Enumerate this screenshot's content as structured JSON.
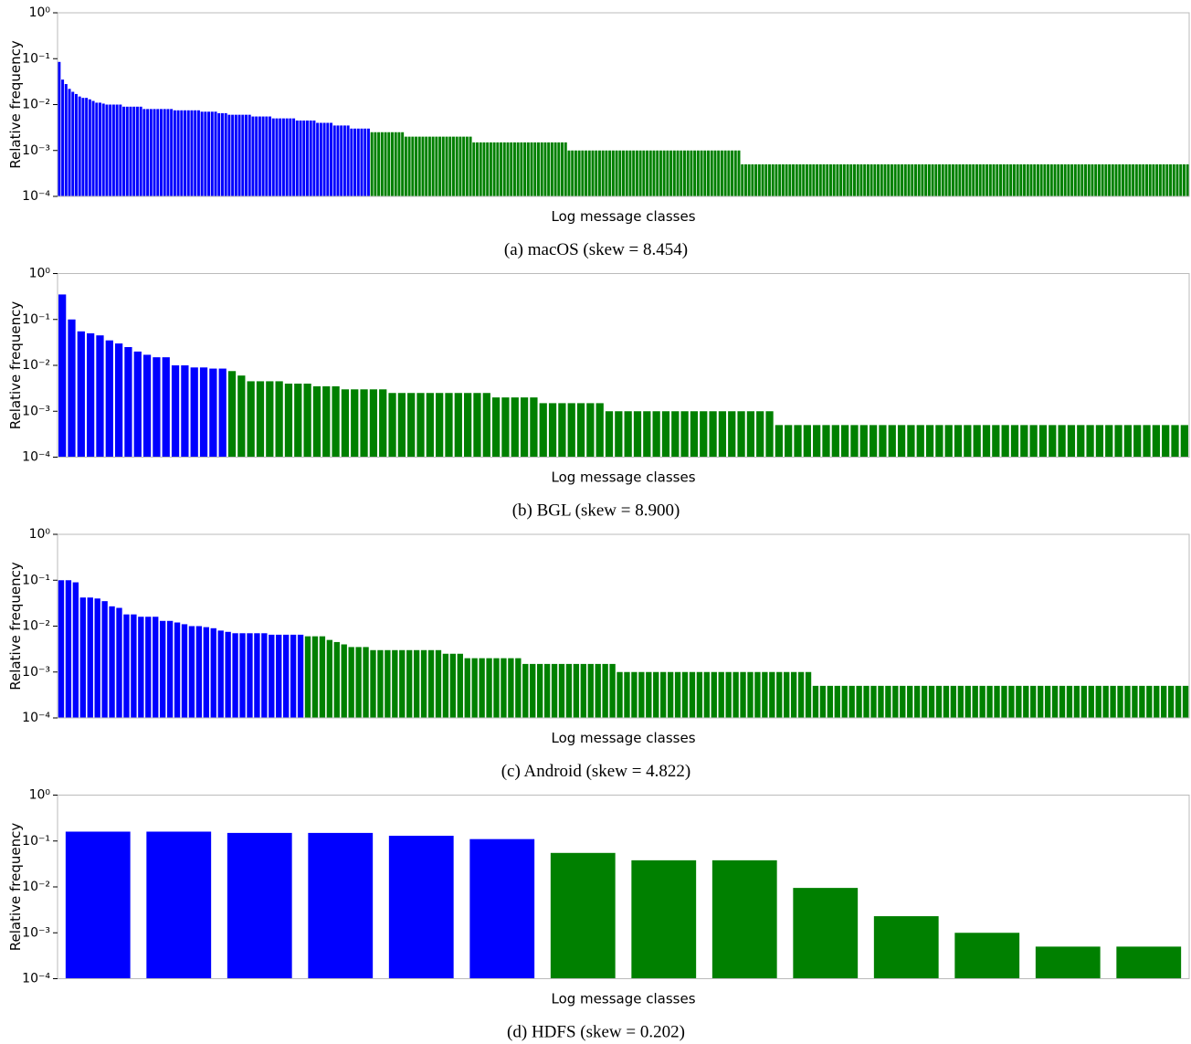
{
  "chart_data": [
    {
      "type": "bar",
      "title": "(a) macOS (skew = 8.454)",
      "y_label": "Relative frequency",
      "x_label": "Log message classes",
      "yscale": "log",
      "ylim": [
        0.0001,
        1
      ],
      "yticks": [
        {
          "value": 0.0001,
          "label": "10⁻⁴"
        },
        {
          "value": 0.001,
          "label": "10⁻³"
        },
        {
          "value": 0.01,
          "label": "10⁻²"
        },
        {
          "value": 0.1,
          "label": "10⁻¹"
        },
        {
          "value": 1,
          "label": "10⁰"
        }
      ],
      "series": [
        {
          "color": "#0000ff",
          "values": [
            0.085,
            0.035,
            0.028,
            0.022,
            0.019,
            0.017,
            0.015,
            0.014,
            0.014,
            0.013,
            0.012,
            0.011,
            0.011,
            0.0105,
            0.01,
            0.01,
            0.01,
            0.01,
            0.01,
            0.009,
            0.009,
            0.009,
            0.009,
            0.009,
            0.009,
            0.008,
            0.008,
            0.008,
            0.008,
            0.008,
            0.008,
            0.008,
            0.008,
            0.008,
            0.0075,
            0.0075,
            0.0075,
            0.0075,
            0.0075,
            0.0075,
            0.0075,
            0.0075,
            0.007,
            0.007,
            0.007,
            0.007,
            0.007,
            0.0065,
            0.0065,
            0.0065,
            0.006,
            0.006,
            0.006,
            0.006,
            0.006,
            0.006,
            0.006,
            0.0055,
            0.0055,
            0.0055,
            0.0055,
            0.0055,
            0.0055,
            0.005,
            0.005,
            0.005,
            0.005,
            0.005,
            0.005,
            0.005,
            0.0045,
            0.0045,
            0.0045,
            0.0045,
            0.0045,
            0.0045,
            0.004,
            0.004,
            0.004,
            0.004,
            0.004,
            0.0035,
            0.0035,
            0.0035,
            0.0035,
            0.0035,
            0.003,
            0.003,
            0.003,
            0.003,
            0.003,
            0.003
          ]
        },
        {
          "color": "#008000",
          "values": [
            0.0025,
            0.0025,
            0.0025,
            0.0025,
            0.0025,
            0.0025,
            0.0025,
            0.0025,
            0.0025,
            0.0025,
            0.002,
            0.002,
            0.002,
            0.002,
            0.002,
            0.002,
            0.002,
            0.002,
            0.002,
            0.002,
            0.002,
            0.002,
            0.002,
            0.002,
            0.002,
            0.002,
            0.002,
            0.002,
            0.002,
            0.002,
            0.0015,
            0.0015,
            0.0015,
            0.0015,
            0.0015,
            0.0015,
            0.0015,
            0.0015,
            0.0015,
            0.0015,
            0.0015,
            0.0015,
            0.0015,
            0.0015,
            0.0015,
            0.0015,
            0.0015,
            0.0015,
            0.0015,
            0.0015,
            0.0015,
            0.0015,
            0.0015,
            0.0015,
            0.0015,
            0.0015,
            0.0015,
            0.0015,
            0.001,
            0.001,
            0.001,
            0.001,
            0.001,
            0.001,
            0.001,
            0.001,
            0.001,
            0.001,
            0.001,
            0.001,
            0.001,
            0.001,
            0.001,
            0.001,
            0.001,
            0.001,
            0.001,
            0.001,
            0.001,
            0.001,
            0.001,
            0.001,
            0.001,
            0.001,
            0.001,
            0.001,
            0.001,
            0.001,
            0.001,
            0.001,
            0.001,
            0.001,
            0.001,
            0.001,
            0.001,
            0.001,
            0.001,
            0.001,
            0.001,
            0.001,
            0.001,
            0.001,
            0.001,
            0.001,
            0.001,
            0.001,
            0.001,
            0.001,
            0.001,
            0.0005,
            0.0005,
            0.0005,
            0.0005,
            0.0005,
            0.0005,
            0.0005,
            0.0005,
            0.0005,
            0.0005,
            0.0005,
            0.0005,
            0.0005,
            0.0005,
            0.0005,
            0.0005,
            0.0005,
            0.0005,
            0.0005,
            0.0005,
            0.0005,
            0.0005,
            0.0005,
            0.0005,
            0.0005,
            0.0005,
            0.0005,
            0.0005,
            0.0005,
            0.0005,
            0.0005,
            0.0005,
            0.0005,
            0.0005,
            0.0005,
            0.0005,
            0.0005,
            0.0005,
            0.0005,
            0.0005,
            0.0005,
            0.0005,
            0.0005,
            0.0005,
            0.0005,
            0.0005,
            0.0005,
            0.0005,
            0.0005,
            0.0005,
            0.0005,
            0.0005,
            0.0005,
            0.0005,
            0.0005,
            0.0005,
            0.0005,
            0.0005,
            0.0005,
            0.0005,
            0.0005,
            0.0005,
            0.0005,
            0.0005,
            0.0005,
            0.0005,
            0.0005,
            0.0005,
            0.0005,
            0.0005,
            0.0005,
            0.0005,
            0.0005,
            0.0005,
            0.0005,
            0.0005,
            0.0005,
            0.0005,
            0.0005,
            0.0005,
            0.0005,
            0.0005,
            0.0005,
            0.0005,
            0.0005,
            0.0005,
            0.0005,
            0.0005,
            0.0005,
            0.0005,
            0.0005,
            0.0005,
            0.0005,
            0.0005,
            0.0005,
            0.0005,
            0.0005,
            0.0005,
            0.0005,
            0.0005,
            0.0005,
            0.0005,
            0.0005,
            0.0005,
            0.0005,
            0.0005,
            0.0005,
            0.0005,
            0.0005,
            0.0005,
            0.0005,
            0.0005,
            0.0005,
            0.0005,
            0.0005,
            0.0005,
            0.0005,
            0.0005,
            0.0005,
            0.0005,
            0.0005,
            0.0005,
            0.0005,
            0.0005,
            0.0005,
            0.0005,
            0.0005,
            0.0005,
            0.0005,
            0.0005,
            0.0005,
            0.0005
          ]
        }
      ]
    },
    {
      "type": "bar",
      "title": "(b) BGL (skew = 8.900)",
      "y_label": "Relative frequency",
      "x_label": "Log message classes",
      "yscale": "log",
      "ylim": [
        0.0001,
        1
      ],
      "yticks": [
        {
          "value": 0.0001,
          "label": "10⁻⁴"
        },
        {
          "value": 0.001,
          "label": "10⁻³"
        },
        {
          "value": 0.01,
          "label": "10⁻²"
        },
        {
          "value": 0.1,
          "label": "10⁻¹"
        },
        {
          "value": 1,
          "label": "10⁰"
        }
      ],
      "series": [
        {
          "color": "#0000ff",
          "values": [
            0.35,
            0.1,
            0.055,
            0.05,
            0.045,
            0.035,
            0.03,
            0.025,
            0.02,
            0.017,
            0.015,
            0.015,
            0.01,
            0.01,
            0.009,
            0.009,
            0.0085,
            0.0085
          ]
        },
        {
          "color": "#008000",
          "values": [
            0.0075,
            0.006,
            0.0045,
            0.0045,
            0.0045,
            0.0045,
            0.004,
            0.004,
            0.004,
            0.0035,
            0.0035,
            0.0035,
            0.003,
            0.003,
            0.003,
            0.003,
            0.003,
            0.0025,
            0.0025,
            0.0025,
            0.0025,
            0.0025,
            0.0025,
            0.0025,
            0.0025,
            0.0025,
            0.0025,
            0.0025,
            0.002,
            0.002,
            0.002,
            0.002,
            0.002,
            0.0015,
            0.0015,
            0.0015,
            0.0015,
            0.0015,
            0.0015,
            0.0015,
            0.001,
            0.001,
            0.001,
            0.001,
            0.001,
            0.001,
            0.001,
            0.001,
            0.001,
            0.001,
            0.001,
            0.001,
            0.001,
            0.001,
            0.001,
            0.001,
            0.001,
            0.001,
            0.0005,
            0.0005,
            0.0005,
            0.0005,
            0.0005,
            0.0005,
            0.0005,
            0.0005,
            0.0005,
            0.0005,
            0.0005,
            0.0005,
            0.0005,
            0.0005,
            0.0005,
            0.0005,
            0.0005,
            0.0005,
            0.0005,
            0.0005,
            0.0005,
            0.0005,
            0.0005,
            0.0005,
            0.0005,
            0.0005,
            0.0005,
            0.0005,
            0.0005,
            0.0005,
            0.0005,
            0.0005,
            0.0005,
            0.0005,
            0.0005,
            0.0005,
            0.0005,
            0.0005,
            0.0005,
            0.0005,
            0.0005,
            0.0005,
            0.0005,
            0.0005
          ]
        }
      ]
    },
    {
      "type": "bar",
      "title": "(c) Android (skew = 4.822)",
      "y_label": "Relative frequency",
      "x_label": "Log message classes",
      "yscale": "log",
      "ylim": [
        0.0001,
        1
      ],
      "yticks": [
        {
          "value": 0.0001,
          "label": "10⁻⁴"
        },
        {
          "value": 0.001,
          "label": "10⁻³"
        },
        {
          "value": 0.01,
          "label": "10⁻²"
        },
        {
          "value": 0.1,
          "label": "10⁻¹"
        },
        {
          "value": 1,
          "label": "10⁰"
        }
      ],
      "series": [
        {
          "color": "#0000ff",
          "values": [
            0.1,
            0.1,
            0.09,
            0.042,
            0.042,
            0.04,
            0.035,
            0.027,
            0.025,
            0.018,
            0.018,
            0.016,
            0.016,
            0.016,
            0.013,
            0.013,
            0.012,
            0.011,
            0.01,
            0.01,
            0.0095,
            0.009,
            0.008,
            0.0075,
            0.007,
            0.007,
            0.007,
            0.007,
            0.007,
            0.0065,
            0.0065,
            0.0065,
            0.0065,
            0.0065
          ]
        },
        {
          "color": "#008000",
          "values": [
            0.006,
            0.006,
            0.006,
            0.005,
            0.0045,
            0.004,
            0.0035,
            0.0035,
            0.0035,
            0.003,
            0.003,
            0.003,
            0.003,
            0.003,
            0.003,
            0.003,
            0.003,
            0.003,
            0.003,
            0.0025,
            0.0025,
            0.0025,
            0.002,
            0.002,
            0.002,
            0.002,
            0.002,
            0.002,
            0.002,
            0.002,
            0.0015,
            0.0015,
            0.0015,
            0.0015,
            0.0015,
            0.0015,
            0.0015,
            0.0015,
            0.0015,
            0.0015,
            0.0015,
            0.0015,
            0.0015,
            0.001,
            0.001,
            0.001,
            0.001,
            0.001,
            0.001,
            0.001,
            0.001,
            0.001,
            0.001,
            0.001,
            0.001,
            0.001,
            0.001,
            0.001,
            0.001,
            0.001,
            0.001,
            0.001,
            0.001,
            0.001,
            0.001,
            0.001,
            0.001,
            0.001,
            0.001,
            0.001,
            0.0005,
            0.0005,
            0.0005,
            0.0005,
            0.0005,
            0.0005,
            0.0005,
            0.0005,
            0.0005,
            0.0005,
            0.0005,
            0.0005,
            0.0005,
            0.0005,
            0.0005,
            0.0005,
            0.0005,
            0.0005,
            0.0005,
            0.0005,
            0.0005,
            0.0005,
            0.0005,
            0.0005,
            0.0005,
            0.0005,
            0.0005,
            0.0005,
            0.0005,
            0.0005,
            0.0005,
            0.0005,
            0.0005,
            0.0005,
            0.0005,
            0.0005,
            0.0005,
            0.0005,
            0.0005,
            0.0005,
            0.0005,
            0.0005,
            0.0005,
            0.0005,
            0.0005,
            0.0005,
            0.0005,
            0.0005,
            0.0005,
            0.0005,
            0.0005,
            0.0005
          ]
        }
      ]
    },
    {
      "type": "bar",
      "title": "(d) HDFS (skew = 0.202)",
      "y_label": "Relative frequency",
      "x_label": "Log message classes",
      "yscale": "log",
      "ylim": [
        0.0001,
        1
      ],
      "yticks": [
        {
          "value": 0.0001,
          "label": "10⁻⁴"
        },
        {
          "value": 0.001,
          "label": "10⁻³"
        },
        {
          "value": 0.01,
          "label": "10⁻²"
        },
        {
          "value": 0.1,
          "label": "10⁻¹"
        },
        {
          "value": 1,
          "label": "10⁰"
        }
      ],
      "series": [
        {
          "color": "#0000ff",
          "values": [
            0.16,
            0.16,
            0.15,
            0.15,
            0.13,
            0.11
          ]
        },
        {
          "color": "#008000",
          "values": [
            0.055,
            0.038,
            0.038,
            0.0095,
            0.0023,
            0.001,
            0.0005,
            0.0005
          ]
        }
      ]
    }
  ]
}
